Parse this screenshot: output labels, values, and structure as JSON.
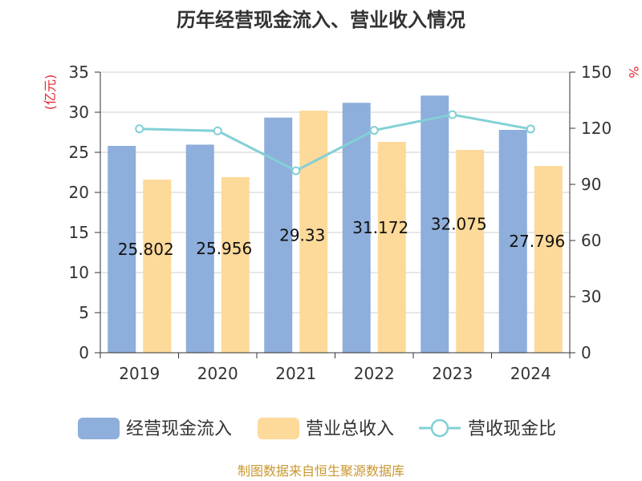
{
  "chart_data": {
    "type": "bar",
    "title": "历年经营现金流入、营业收入情况",
    "categories": [
      "2019",
      "2020",
      "2021",
      "2022",
      "2023",
      "2024"
    ],
    "series": [
      {
        "name": "经营现金流入",
        "kind": "bar",
        "axis": "left",
        "color": "#8eaedb",
        "values": [
          25.802,
          25.956,
          29.33,
          31.172,
          32.075,
          27.796
        ],
        "labels": [
          "25.802",
          "25.956",
          "29.33",
          "31.172",
          "32.075",
          "27.796"
        ]
      },
      {
        "name": "营业总收入",
        "kind": "bar",
        "axis": "left",
        "color": "#fdd99a",
        "values": [
          21.6,
          21.9,
          30.2,
          26.3,
          25.3,
          23.3
        ]
      },
      {
        "name": "营收现金比",
        "kind": "line",
        "axis": "right",
        "color": "#82d0d6",
        "values": [
          119.7,
          118.6,
          97.3,
          118.9,
          127.3,
          119.6
        ]
      }
    ],
    "y_left": {
      "unit": "(亿元)",
      "min": 0,
      "max": 35,
      "ticks": [
        0,
        5,
        10,
        15,
        20,
        25,
        30,
        35
      ]
    },
    "y_right": {
      "unit": "%",
      "min": 0,
      "max": 150,
      "ticks": [
        0,
        30,
        60,
        90,
        120,
        150
      ]
    },
    "grid": true,
    "legend_position": "bottom"
  },
  "source": "制图数据来自恒生聚源数据库"
}
